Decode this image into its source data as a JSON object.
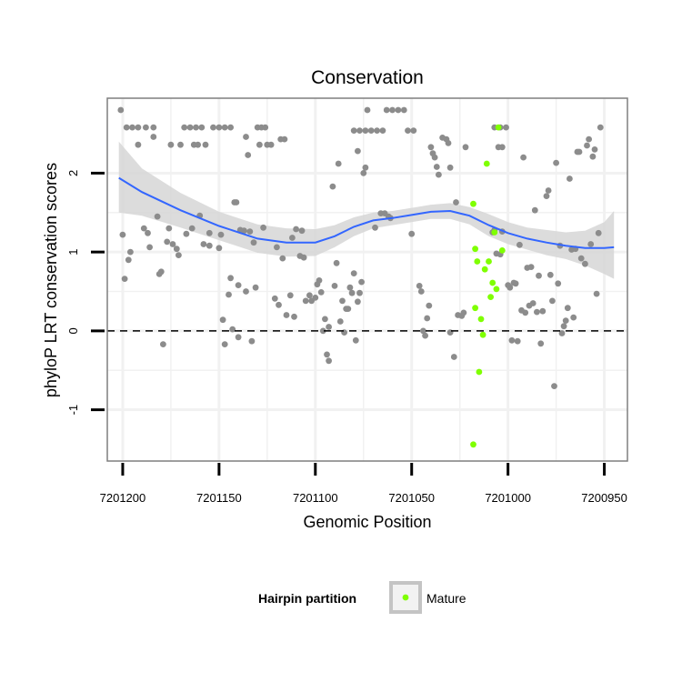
{
  "chart_data": {
    "type": "scatter",
    "title": "Conservation",
    "xlabel": "Genomic Position",
    "ylabel": "phyloP LRT conservation scores",
    "xlim": [
      7201208,
      7200938
    ],
    "ylim": [
      -1.65,
      2.95
    ],
    "x_reversed": true,
    "x_ticks": [
      7201200,
      7201150,
      7201100,
      7201050,
      7201000,
      7200950
    ],
    "x_tick_labels": [
      "7201200",
      "7201150",
      "7201100",
      "7201050",
      "7201000",
      "7200950"
    ],
    "y_ticks": [
      -1,
      0,
      1,
      2
    ],
    "y_tick_labels": [
      "-1",
      "0",
      "1",
      "2"
    ],
    "reference_line": {
      "y": 0,
      "style": "dashed"
    },
    "legend": {
      "title": "Hairpin partition",
      "entries": [
        {
          "label": "Mature",
          "color": "#7fff00"
        }
      ],
      "position": "bottom"
    },
    "colors": {
      "other": "#8c8c8c",
      "mature": "#7fff00",
      "smooth": "#3366ff",
      "ribbon": "#d6d6d6"
    },
    "smooth": {
      "x": [
        7201202,
        7201190,
        7201170,
        7201150,
        7201130,
        7201115,
        7201100,
        7201090,
        7201080,
        7201070,
        7201060,
        7201050,
        7201040,
        7201030,
        7201020,
        7201010,
        7201000,
        7200990,
        7200980,
        7200970,
        7200960,
        7200950,
        7200945
      ],
      "y": [
        1.94,
        1.76,
        1.53,
        1.33,
        1.17,
        1.12,
        1.12,
        1.2,
        1.32,
        1.4,
        1.43,
        1.47,
        1.51,
        1.52,
        1.46,
        1.34,
        1.24,
        1.17,
        1.12,
        1.08,
        1.05,
        1.05,
        1.06
      ],
      "lower": [
        1.5,
        1.46,
        1.31,
        1.15,
        0.99,
        0.94,
        0.95,
        1.06,
        1.2,
        1.3,
        1.34,
        1.38,
        1.42,
        1.42,
        1.35,
        1.2,
        1.1,
        1.03,
        0.96,
        0.91,
        0.83,
        0.72,
        0.66
      ],
      "upper": [
        2.4,
        2.06,
        1.75,
        1.51,
        1.35,
        1.3,
        1.29,
        1.34,
        1.44,
        1.5,
        1.52,
        1.56,
        1.6,
        1.62,
        1.57,
        1.48,
        1.38,
        1.31,
        1.28,
        1.25,
        1.27,
        1.38,
        1.52
      ]
    },
    "series": [
      {
        "name": "Other",
        "points": [
          [
            7201201,
            2.8
          ],
          [
            7201198,
            2.58
          ],
          [
            7201195,
            2.58
          ],
          [
            7201192,
            2.58
          ],
          [
            7201188,
            2.58
          ],
          [
            7201184,
            2.58
          ],
          [
            7201200,
            1.22
          ],
          [
            7201199,
            0.66
          ],
          [
            7201197,
            0.9
          ],
          [
            7201196,
            1.0
          ],
          [
            7201192,
            2.36
          ],
          [
            7201189,
            1.3
          ],
          [
            7201187,
            1.24
          ],
          [
            7201186,
            1.06
          ],
          [
            7201184,
            2.46
          ],
          [
            7201182,
            1.45
          ],
          [
            7201181,
            0.72
          ],
          [
            7201180,
            0.75
          ],
          [
            7201179,
            -0.17
          ],
          [
            7201177,
            1.13
          ],
          [
            7201176,
            1.3
          ],
          [
            7201175,
            2.36
          ],
          [
            7201174,
            1.1
          ],
          [
            7201172,
            1.04
          ],
          [
            7201171,
            0.96
          ],
          [
            7201170,
            2.36
          ],
          [
            7201168,
            2.58
          ],
          [
            7201165,
            2.58
          ],
          [
            7201162,
            2.58
          ],
          [
            7201159,
            2.58
          ],
          [
            7201167,
            1.23
          ],
          [
            7201164,
            1.3
          ],
          [
            7201163,
            2.36
          ],
          [
            7201161,
            2.36
          ],
          [
            7201160,
            1.46
          ],
          [
            7201158,
            1.1
          ],
          [
            7201157,
            2.36
          ],
          [
            7201155,
            1.24
          ],
          [
            7201155,
            1.08
          ],
          [
            7201153,
            2.58
          ],
          [
            7201150,
            2.58
          ],
          [
            7201147,
            2.58
          ],
          [
            7201144,
            2.58
          ],
          [
            7201150,
            1.05
          ],
          [
            7201149,
            1.22
          ],
          [
            7201148,
            0.14
          ],
          [
            7201147,
            -0.17
          ],
          [
            7201145,
            0.46
          ],
          [
            7201144,
            0.67
          ],
          [
            7201143,
            0.02
          ],
          [
            7201142,
            1.63
          ],
          [
            7201141,
            1.63
          ],
          [
            7201140,
            -0.08
          ],
          [
            7201140,
            0.58
          ],
          [
            7201139,
            1.28
          ],
          [
            7201137,
            1.27
          ],
          [
            7201136,
            2.46
          ],
          [
            7201136,
            0.5
          ],
          [
            7201135,
            2.23
          ],
          [
            7201134,
            1.26
          ],
          [
            7201133,
            -0.13
          ],
          [
            7201132,
            1.12
          ],
          [
            7201131,
            0.55
          ],
          [
            7201130,
            2.58
          ],
          [
            7201128,
            2.58
          ],
          [
            7201126,
            2.58
          ],
          [
            7201129,
            2.36
          ],
          [
            7201127,
            1.31
          ],
          [
            7201125,
            2.36
          ],
          [
            7201123,
            2.36
          ],
          [
            7201121,
            0.41
          ],
          [
            7201120,
            1.06
          ],
          [
            7201119,
            0.33
          ],
          [
            7201118,
            2.43
          ],
          [
            7201117,
            0.92
          ],
          [
            7201116,
            2.43
          ],
          [
            7201115,
            0.2
          ],
          [
            7201113,
            0.45
          ],
          [
            7201112,
            1.18
          ],
          [
            7201111,
            0.18
          ],
          [
            7201110,
            1.29
          ],
          [
            7201108,
            0.95
          ],
          [
            7201107,
            1.27
          ],
          [
            7201106,
            0.93
          ],
          [
            7201105,
            0.38
          ],
          [
            7201103,
            0.45
          ],
          [
            7201102,
            0.38
          ],
          [
            7201100,
            0.42
          ],
          [
            7201099,
            0.59
          ],
          [
            7201098,
            0.64
          ],
          [
            7201097,
            0.49
          ],
          [
            7201096,
            0.0
          ],
          [
            7201095,
            0.15
          ],
          [
            7201094,
            -0.3
          ],
          [
            7201093,
            0.05
          ],
          [
            7201093,
            -0.38
          ],
          [
            7201091,
            1.83
          ],
          [
            7201090,
            0.57
          ],
          [
            7201089,
            0.86
          ],
          [
            7201088,
            2.12
          ],
          [
            7201087,
            0.12
          ],
          [
            7201086,
            0.38
          ],
          [
            7201085,
            -0.02
          ],
          [
            7201084,
            0.28
          ],
          [
            7201083,
            0.28
          ],
          [
            7201082,
            0.55
          ],
          [
            7201081,
            0.48
          ],
          [
            7201080,
            0.73
          ],
          [
            7201079,
            -0.12
          ],
          [
            7201078,
            0.37
          ],
          [
            7201077,
            0.48
          ],
          [
            7201078,
            2.28
          ],
          [
            7201076,
            0.62
          ],
          [
            7201075,
            2.0
          ],
          [
            7201074,
            2.07
          ],
          [
            7201080,
            2.54
          ],
          [
            7201077,
            2.54
          ],
          [
            7201074,
            2.54
          ],
          [
            7201071,
            2.54
          ],
          [
            7201068,
            2.54
          ],
          [
            7201065,
            2.54
          ],
          [
            7201073,
            2.8
          ],
          [
            7201069,
            1.31
          ],
          [
            7201066,
            1.49
          ],
          [
            7201063,
            2.8
          ],
          [
            7201060,
            2.8
          ],
          [
            7201057,
            2.8
          ],
          [
            7201054,
            2.8
          ],
          [
            7201064,
            1.49
          ],
          [
            7201062,
            1.45
          ],
          [
            7201061,
            1.43
          ],
          [
            7201050,
            1.23
          ],
          [
            7201052,
            2.54
          ],
          [
            7201049,
            2.54
          ],
          [
            7201046,
            0.57
          ],
          [
            7201045,
            0.5
          ],
          [
            7201044,
            0.0
          ],
          [
            7201043,
            -0.06
          ],
          [
            7201042,
            0.16
          ],
          [
            7201041,
            0.32
          ],
          [
            7201040,
            2.33
          ],
          [
            7201039,
            2.25
          ],
          [
            7201038,
            2.2
          ],
          [
            7201037,
            2.08
          ],
          [
            7201036,
            1.98
          ],
          [
            7201034,
            2.45
          ],
          [
            7201032,
            2.43
          ],
          [
            7201031,
            2.38
          ],
          [
            7201030,
            2.07
          ],
          [
            7201030,
            -0.02
          ],
          [
            7201028,
            -0.33
          ],
          [
            7201027,
            1.63
          ],
          [
            7201026,
            0.2
          ],
          [
            7201024,
            0.19
          ],
          [
            7201023,
            0.23
          ],
          [
            7201022,
            2.33
          ],
          [
            7201007,
            2.58
          ],
          [
            7201004,
            2.58
          ],
          [
            7201001,
            2.58
          ],
          [
            7201005,
            2.33
          ],
          [
            7201003,
            2.33
          ],
          [
            7201003,
            1.26
          ],
          [
            7201008,
            1.25
          ],
          [
            7201007,
            1.28
          ],
          [
            7201006,
            0.98
          ],
          [
            7201004,
            0.97
          ],
          [
            7201000,
            0.58
          ],
          [
            7200999,
            0.55
          ],
          [
            7200998,
            -0.12
          ],
          [
            7200997,
            0.61
          ],
          [
            7200996,
            0.6
          ],
          [
            7200995,
            -0.13
          ],
          [
            7200994,
            1.09
          ],
          [
            7200993,
            0.26
          ],
          [
            7200992,
            2.2
          ],
          [
            7200991,
            0.23
          ],
          [
            7200990,
            0.8
          ],
          [
            7200989,
            0.32
          ],
          [
            7200988,
            0.81
          ],
          [
            7200987,
            0.35
          ],
          [
            7200986,
            1.53
          ],
          [
            7200985,
            0.24
          ],
          [
            7200984,
            0.7
          ],
          [
            7200983,
            -0.16
          ],
          [
            7200982,
            0.25
          ],
          [
            7200980,
            1.71
          ],
          [
            7200979,
            1.78
          ],
          [
            7200978,
            0.71
          ],
          [
            7200977,
            0.38
          ],
          [
            7200976,
            -0.7
          ],
          [
            7200975,
            2.13
          ],
          [
            7200974,
            0.6
          ],
          [
            7200973,
            1.08
          ],
          [
            7200972,
            -0.03
          ],
          [
            7200971,
            0.06
          ],
          [
            7200970,
            0.13
          ],
          [
            7200969,
            0.29
          ],
          [
            7200968,
            1.93
          ],
          [
            7200967,
            1.03
          ],
          [
            7200966,
            0.17
          ],
          [
            7200965,
            1.04
          ],
          [
            7200964,
            2.27
          ],
          [
            7200963,
            2.27
          ],
          [
            7200962,
            0.92
          ],
          [
            7200960,
            0.85
          ],
          [
            7200959,
            2.35
          ],
          [
            7200958,
            2.43
          ],
          [
            7200957,
            1.1
          ],
          [
            7200956,
            2.21
          ],
          [
            7200955,
            2.3
          ],
          [
            7200954,
            0.47
          ],
          [
            7200953,
            1.24
          ],
          [
            7200952,
            2.58
          ]
        ]
      },
      {
        "name": "Mature",
        "points": [
          [
            7201018,
            1.61
          ],
          [
            7201017,
            1.04
          ],
          [
            7201016,
            0.88
          ],
          [
            7201017,
            0.29
          ],
          [
            7201015,
            -0.52
          ],
          [
            7201014,
            0.15
          ],
          [
            7201013,
            -0.05
          ],
          [
            7201012,
            0.78
          ],
          [
            7201010,
            0.88
          ],
          [
            7201011,
            2.12
          ],
          [
            7201009,
            0.43
          ],
          [
            7201008,
            0.61
          ],
          [
            7201006,
            0.53
          ],
          [
            7201005,
            2.58
          ],
          [
            7201003,
            1.02
          ],
          [
            7201018,
            -1.44
          ],
          [
            7201007,
            1.25
          ]
        ]
      }
    ]
  }
}
